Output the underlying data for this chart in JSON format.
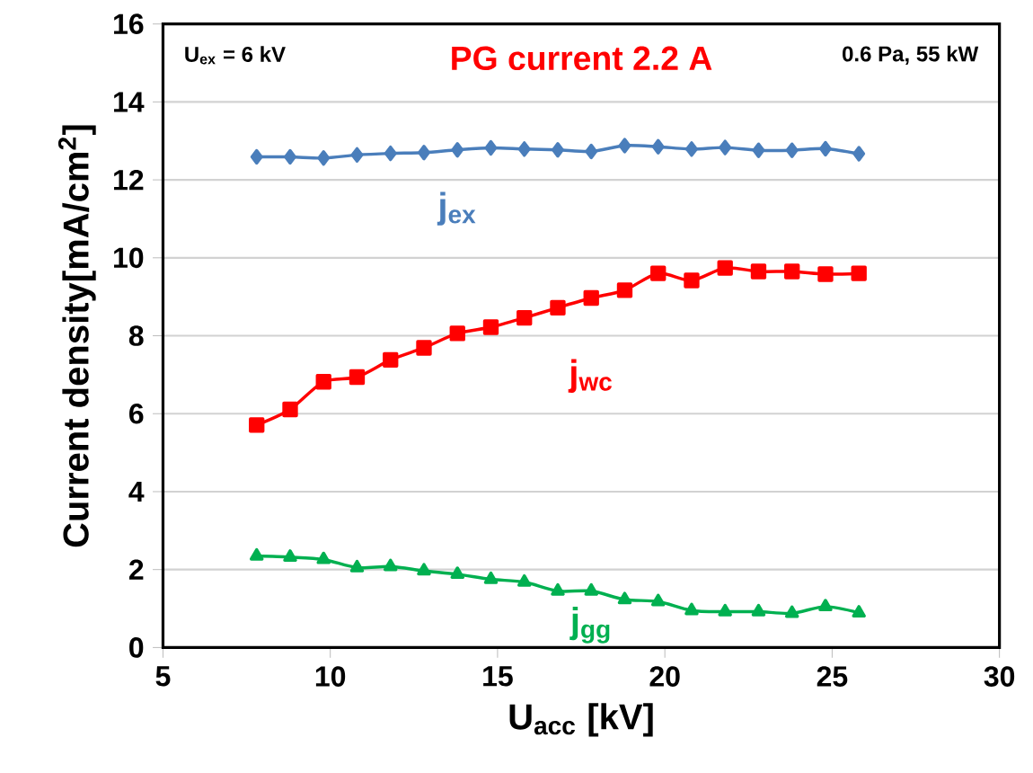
{
  "chart_data": {
    "type": "line",
    "title": "PG current 2.2 A",
    "xlabel": "U$_{acc}$ [kV]",
    "ylabel": "Current density[mA/cm$^{2}$]",
    "annotations": [
      "U$_{ex}$ = 6 kV",
      "0.6 Pa, 55 kW"
    ],
    "x": [
      7.8,
      8.8,
      9.8,
      10.8,
      11.8,
      12.8,
      13.8,
      14.8,
      15.8,
      16.8,
      17.8,
      18.8,
      19.8,
      20.8,
      21.8,
      22.8,
      23.8,
      24.8,
      25.8
    ],
    "series": [
      {
        "name": "j$_{ex}$",
        "color": "#4a7ebb",
        "marker": "diamond",
        "values": [
          12.59,
          12.59,
          12.56,
          12.64,
          12.68,
          12.7,
          12.77,
          12.82,
          12.79,
          12.77,
          12.73,
          12.88,
          12.85,
          12.79,
          12.83,
          12.76,
          12.76,
          12.8,
          12.67
        ]
      },
      {
        "name": "j$_{wc}$",
        "color": "#ff0000",
        "marker": "square",
        "values": [
          5.71,
          6.11,
          6.82,
          6.94,
          7.38,
          7.69,
          8.06,
          8.22,
          8.46,
          8.72,
          8.97,
          9.17,
          9.6,
          9.42,
          9.74,
          9.65,
          9.65,
          9.58,
          9.6
        ]
      },
      {
        "name": "j$_{gg}$",
        "color": "#00b050",
        "marker": "triangle",
        "values": [
          2.35,
          2.32,
          2.26,
          2.05,
          2.08,
          1.97,
          1.88,
          1.75,
          1.68,
          1.45,
          1.45,
          1.23,
          1.18,
          0.95,
          0.92,
          0.92,
          0.88,
          1.05,
          0.89
        ]
      }
    ],
    "xlim": [
      5,
      30
    ],
    "xticks": [
      5,
      10,
      15,
      20,
      25,
      30
    ],
    "ylim": [
      0,
      16
    ],
    "yticks": [
      0,
      2,
      4,
      6,
      8,
      10,
      12,
      14,
      16
    ],
    "grid": "y",
    "legend": false,
    "line_style": "solid"
  }
}
